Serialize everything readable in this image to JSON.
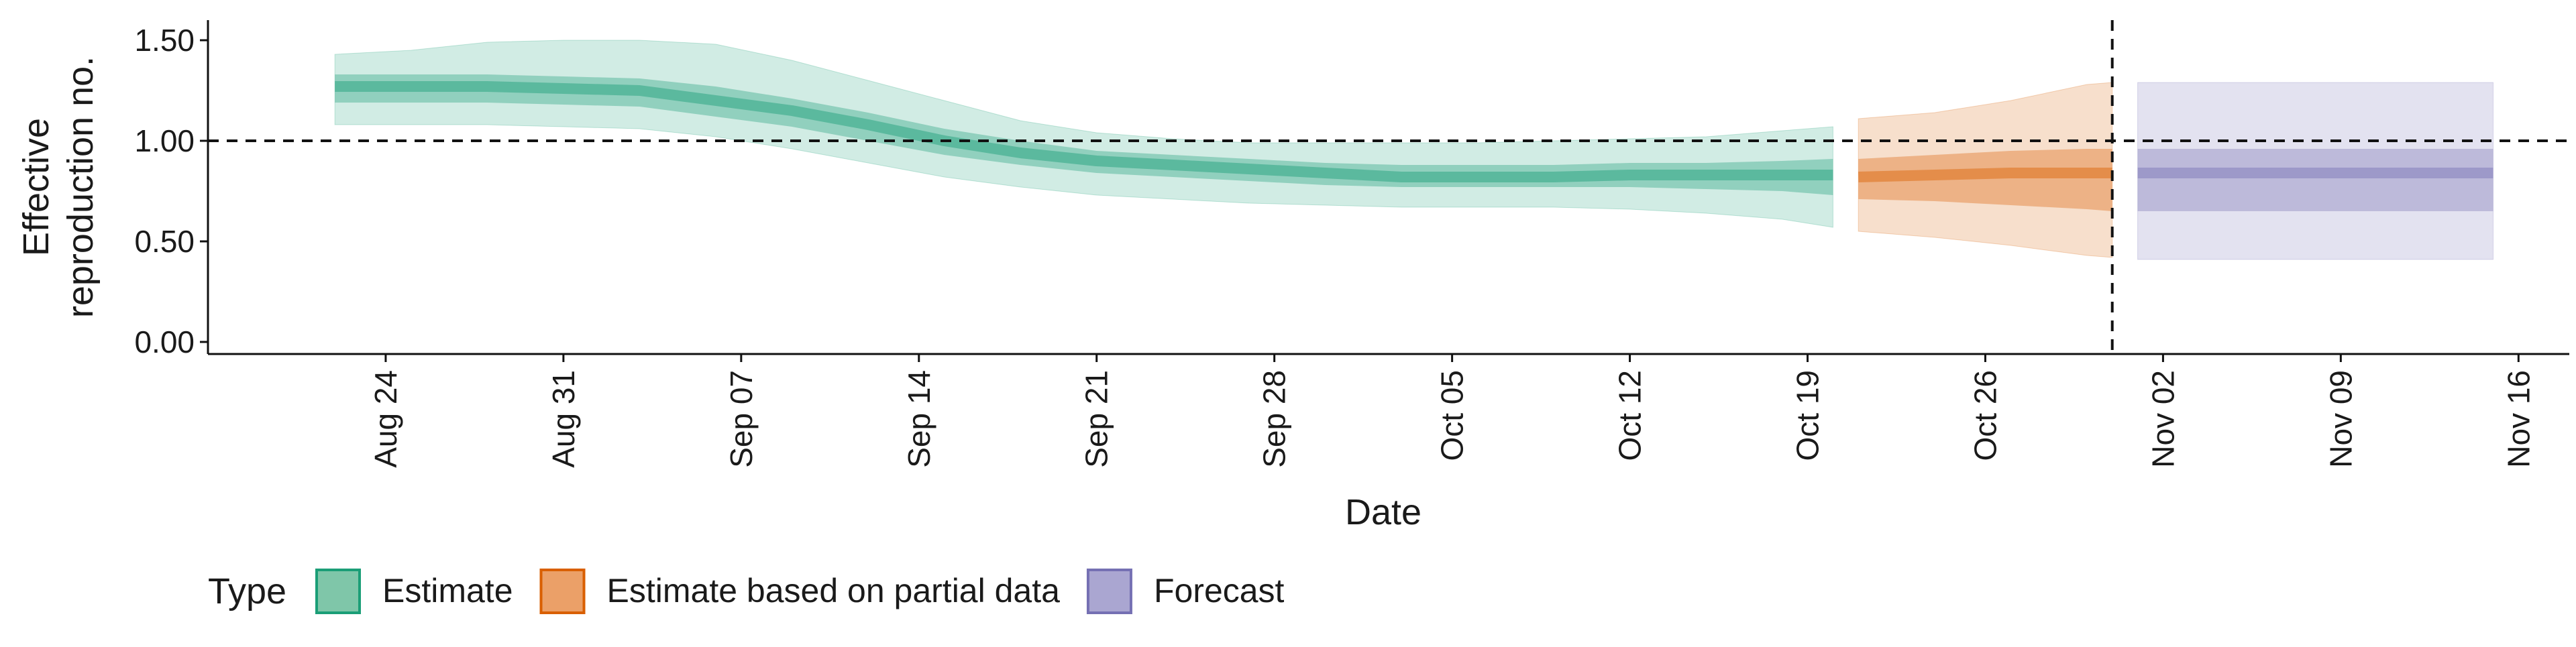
{
  "chart_data": {
    "type": "area",
    "xlabel": "Date",
    "ylabel_lines": [
      "Effective",
      "reproduction no."
    ],
    "x_range": [
      "2020-08-17",
      "2020-11-18"
    ],
    "y_range": [
      -0.06,
      1.6
    ],
    "y_ticks": [
      {
        "value": 0.0,
        "label": "0.00"
      },
      {
        "value": 0.5,
        "label": "0.50"
      },
      {
        "value": 1.0,
        "label": "1.00"
      },
      {
        "value": 1.5,
        "label": "1.50"
      }
    ],
    "x_ticks": [
      {
        "date": "2020-08-24",
        "label": "Aug 24"
      },
      {
        "date": "2020-08-31",
        "label": "Aug 31"
      },
      {
        "date": "2020-09-07",
        "label": "Sep 07"
      },
      {
        "date": "2020-09-14",
        "label": "Sep 14"
      },
      {
        "date": "2020-09-21",
        "label": "Sep 21"
      },
      {
        "date": "2020-09-28",
        "label": "Sep 28"
      },
      {
        "date": "2020-10-05",
        "label": "Oct 05"
      },
      {
        "date": "2020-10-12",
        "label": "Oct 12"
      },
      {
        "date": "2020-10-19",
        "label": "Oct 19"
      },
      {
        "date": "2020-10-26",
        "label": "Oct 26"
      },
      {
        "date": "2020-11-02",
        "label": "Nov 02"
      },
      {
        "date": "2020-11-09",
        "label": "Nov 09"
      },
      {
        "date": "2020-11-16",
        "label": "Nov 16"
      }
    ],
    "reference_line_y": 1.0,
    "reference_line_date": "2020-10-31",
    "grid": false,
    "legend": {
      "title": "Type",
      "position": "bottom",
      "entries": [
        {
          "label": "Estimate",
          "fill": "#7fc6a9",
          "stroke": "#1b9e77"
        },
        {
          "label": "Estimate based on partial data",
          "fill": "#eba068",
          "stroke": "#d95f02"
        },
        {
          "label": "Forecast",
          "fill": "#aaa6d1",
          "stroke": "#7570b3"
        }
      ]
    },
    "series": [
      {
        "type": "Estimate",
        "color": "#1b9e77",
        "points": [
          {
            "date": "2020-08-22",
            "q05": 1.08,
            "q25": 1.19,
            "median": 1.27,
            "q75": 1.33,
            "q95": 1.43
          },
          {
            "date": "2020-08-25",
            "q05": 1.08,
            "q25": 1.19,
            "median": 1.27,
            "q75": 1.33,
            "q95": 1.45
          },
          {
            "date": "2020-08-28",
            "q05": 1.08,
            "q25": 1.19,
            "median": 1.27,
            "q75": 1.33,
            "q95": 1.49
          },
          {
            "date": "2020-08-31",
            "q05": 1.07,
            "q25": 1.18,
            "median": 1.26,
            "q75": 1.32,
            "q95": 1.5
          },
          {
            "date": "2020-09-03",
            "q05": 1.06,
            "q25": 1.17,
            "median": 1.25,
            "q75": 1.31,
            "q95": 1.5
          },
          {
            "date": "2020-09-06",
            "q05": 1.02,
            "q25": 1.12,
            "median": 1.2,
            "q75": 1.27,
            "q95": 1.48
          },
          {
            "date": "2020-09-09",
            "q05": 0.96,
            "q25": 1.07,
            "median": 1.15,
            "q75": 1.21,
            "q95": 1.4
          },
          {
            "date": "2020-09-12",
            "q05": 0.89,
            "q25": 1.0,
            "median": 1.08,
            "q75": 1.14,
            "q95": 1.3
          },
          {
            "date": "2020-09-15",
            "q05": 0.82,
            "q25": 0.93,
            "median": 1.0,
            "q75": 1.06,
            "q95": 1.2
          },
          {
            "date": "2020-09-18",
            "q05": 0.77,
            "q25": 0.88,
            "median": 0.94,
            "q75": 1.0,
            "q95": 1.1
          },
          {
            "date": "2020-09-21",
            "q05": 0.73,
            "q25": 0.84,
            "median": 0.9,
            "q75": 0.95,
            "q95": 1.04
          },
          {
            "date": "2020-09-24",
            "q05": 0.71,
            "q25": 0.82,
            "median": 0.88,
            "q75": 0.93,
            "q95": 1.01
          },
          {
            "date": "2020-09-27",
            "q05": 0.69,
            "q25": 0.8,
            "median": 0.86,
            "q75": 0.91,
            "q95": 0.99
          },
          {
            "date": "2020-09-30",
            "q05": 0.68,
            "q25": 0.78,
            "median": 0.84,
            "q75": 0.89,
            "q95": 0.99
          },
          {
            "date": "2020-10-03",
            "q05": 0.67,
            "q25": 0.77,
            "median": 0.82,
            "q75": 0.88,
            "q95": 0.99
          },
          {
            "date": "2020-10-06",
            "q05": 0.67,
            "q25": 0.77,
            "median": 0.82,
            "q75": 0.88,
            "q95": 0.99
          },
          {
            "date": "2020-10-09",
            "q05": 0.67,
            "q25": 0.77,
            "median": 0.82,
            "q75": 0.88,
            "q95": 1.0
          },
          {
            "date": "2020-10-12",
            "q05": 0.66,
            "q25": 0.77,
            "median": 0.83,
            "q75": 0.89,
            "q95": 1.01
          },
          {
            "date": "2020-10-15",
            "q05": 0.64,
            "q25": 0.76,
            "median": 0.83,
            "q75": 0.89,
            "q95": 1.02
          },
          {
            "date": "2020-10-18",
            "q05": 0.61,
            "q25": 0.75,
            "median": 0.83,
            "q75": 0.9,
            "q95": 1.05
          },
          {
            "date": "2020-10-20",
            "q05": 0.57,
            "q25": 0.73,
            "median": 0.83,
            "q75": 0.91,
            "q95": 1.07
          }
        ]
      },
      {
        "type": "Estimate based on partial data",
        "color": "#d95f02",
        "points": [
          {
            "date": "2020-10-21",
            "q05": 0.55,
            "q25": 0.71,
            "median": 0.82,
            "q75": 0.91,
            "q95": 1.11
          },
          {
            "date": "2020-10-24",
            "q05": 0.52,
            "q25": 0.7,
            "median": 0.83,
            "q75": 0.93,
            "q95": 1.14
          },
          {
            "date": "2020-10-27",
            "q05": 0.48,
            "q25": 0.68,
            "median": 0.84,
            "q75": 0.95,
            "q95": 1.2
          },
          {
            "date": "2020-10-30",
            "q05": 0.43,
            "q25": 0.66,
            "median": 0.84,
            "q75": 0.96,
            "q95": 1.28
          },
          {
            "date": "2020-10-31",
            "q05": 0.42,
            "q25": 0.65,
            "median": 0.84,
            "q75": 0.96,
            "q95": 1.29
          }
        ]
      },
      {
        "type": "Forecast",
        "color": "#7570b3",
        "points": [
          {
            "date": "2020-11-01",
            "q05": 0.41,
            "q25": 0.65,
            "median": 0.84,
            "q75": 0.96,
            "q95": 1.29
          },
          {
            "date": "2020-11-15",
            "q05": 0.41,
            "q25": 0.65,
            "median": 0.84,
            "q75": 0.96,
            "q95": 1.29
          }
        ]
      }
    ]
  }
}
